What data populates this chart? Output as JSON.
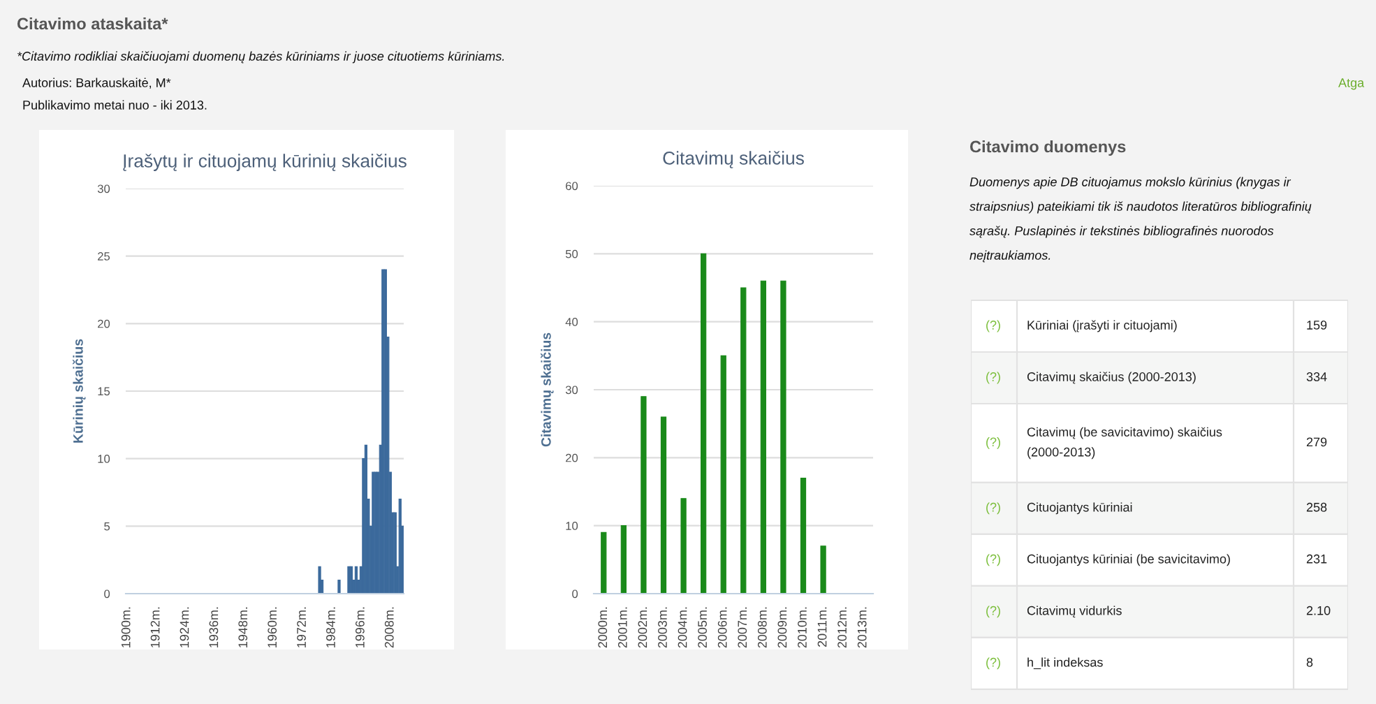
{
  "chart_data": [
    {
      "type": "other",
      "title": "Citavimo ataskaita*",
      "annotations": [
        "*Citavimo rodikliai skaičiuojami duomenų bazės kūriniams ir juose cituotiems kūriniams.",
        "Autorius: Barkauskaitė, M*",
        "Publikavimo metai nuo - iki 2013.",
        "Atga"
      ]
    },
    {
      "type": "bar",
      "title": "Įrašytų ir cituojamų kūrinių skaičius",
      "ylabel": "Kūrinių skaičius",
      "color": "#3c6a9c",
      "ylim": [
        0,
        30
      ],
      "yticks": [
        0,
        5,
        10,
        15,
        20,
        25,
        30
      ],
      "grid": "y",
      "categories": [
        "1900m.",
        null,
        null,
        null,
        null,
        null,
        null,
        null,
        null,
        null,
        null,
        null,
        "1912m.",
        null,
        null,
        null,
        null,
        null,
        null,
        null,
        null,
        null,
        null,
        null,
        "1924m.",
        null,
        null,
        null,
        null,
        null,
        null,
        null,
        null,
        null,
        null,
        null,
        "1936m.",
        null,
        null,
        null,
        null,
        null,
        null,
        null,
        null,
        null,
        null,
        null,
        "1948m.",
        null,
        null,
        null,
        null,
        null,
        null,
        null,
        null,
        null,
        null,
        null,
        "1960m.",
        null,
        null,
        null,
        null,
        null,
        null,
        null,
        null,
        null,
        null,
        null,
        "1972m.",
        null,
        null,
        null,
        null,
        null,
        null,
        null,
        null,
        null,
        null,
        null,
        "1984m.",
        null,
        null,
        null,
        null,
        null,
        null,
        null,
        null,
        null,
        null,
        null,
        "1996m.",
        null,
        null,
        null,
        null,
        null,
        null,
        null,
        null,
        null,
        null,
        null,
        "2008m.",
        null,
        null,
        null,
        null,
        null
      ],
      "values": [
        0,
        0,
        0,
        0,
        0,
        0,
        0,
        0,
        0,
        0,
        0,
        0,
        0,
        0,
        0,
        0,
        0,
        0,
        0,
        0,
        0,
        0,
        0,
        0,
        0,
        0,
        0,
        0,
        0,
        0,
        0,
        0,
        0,
        0,
        0,
        0,
        0,
        0,
        0,
        0,
        0,
        0,
        0,
        0,
        0,
        0,
        0,
        0,
        0,
        0,
        0,
        0,
        0,
        0,
        0,
        0,
        0,
        0,
        0,
        0,
        0,
        0,
        0,
        0,
        0,
        0,
        0,
        0,
        0,
        0,
        0,
        0,
        0,
        0,
        0,
        0,
        0,
        0,
        0,
        2,
        1,
        0,
        0,
        0,
        0,
        0,
        0,
        1,
        0,
        0,
        0,
        2,
        2,
        1,
        2,
        1,
        2,
        10,
        11,
        7,
        5,
        9,
        9,
        9,
        11,
        24,
        24,
        19,
        9,
        6,
        6,
        2,
        7,
        5
      ]
    },
    {
      "type": "bar",
      "title": "Citavimų skaičius",
      "ylabel": "Citavimų skaičius",
      "color": "#1a8a1a",
      "ylim": [
        0,
        60
      ],
      "yticks": [
        0,
        10,
        20,
        30,
        40,
        50,
        60
      ],
      "grid": "y",
      "categories": [
        "2000m.",
        "2001m.",
        "2002m.",
        "2003m.",
        "2004m.",
        "2005m.",
        "2006m.",
        "2007m.",
        "2008m.",
        "2009m.",
        "2010m.",
        "2011m.",
        "2012m.",
        "2013m."
      ],
      "values": [
        9,
        10,
        29,
        26,
        14,
        50,
        35,
        45,
        46,
        46,
        17,
        7,
        0,
        0
      ]
    },
    {
      "type": "other",
      "title": "Citavimo duomenys",
      "subtitle": "Duomenys apie DB cituojamus mokslo kūrinius (knygas ir straipsnius) pateikiami tik iš naudotos literatūros bibliografinių sąrašų. Puslapinės ir tekstinės bibliografinės nuorodos neįtraukiamos.",
      "categories": [
        "Kūriniai (įrašyti ir cituojami)",
        "Citavimų skaičius (2000-2013)",
        "Citavimų (be savicitavimo) skaičius (2000-2013)",
        "Cituojantys kūriniai",
        "Cituojantys kūriniai (be savicitavimo)",
        "Citavimų vidurkis",
        "h_lit indeksas"
      ],
      "value_labels": [
        "159",
        "334",
        "279",
        "258",
        "231",
        "2.10",
        "8"
      ],
      "annotations": [
        "(?)",
        "(?)",
        "(?)",
        "(?)",
        "(?)",
        "(?)",
        "(?)"
      ]
    }
  ]
}
